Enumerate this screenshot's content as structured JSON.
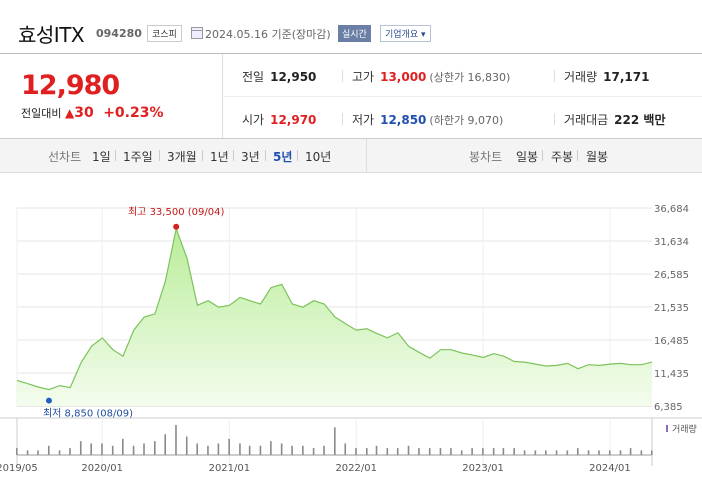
{
  "header": {
    "stock_name": "효성ITX",
    "stock_code": "094280",
    "market": "코스피",
    "date": "2024.05.16 기준(장마감)",
    "realtime_label": "실시간",
    "company_label": "기업개요"
  },
  "quote": {
    "price": "12,980",
    "change_label": "전일대비",
    "change_value": "30",
    "change_pct": "+0.23%",
    "prev_close_label": "전일",
    "prev_close": "12,950",
    "high_label": "고가",
    "high": "13,000",
    "upper_limit": "(상한가 16,830)",
    "volume_label": "거래량",
    "volume": "17,171",
    "open_label": "시가",
    "open": "12,970",
    "low_label": "저가",
    "low": "12,850",
    "lower_limit": "(하한가 9,070)",
    "amount_label": "거래대금",
    "amount": "222 백만"
  },
  "tabs": {
    "line_label": "선차트",
    "periods": [
      "1일",
      "1주일",
      "3개월",
      "1년",
      "3년",
      "5년",
      "10년"
    ],
    "active_period": "5년",
    "candle_label": "봉차트",
    "candles": [
      "일봉",
      "주봉",
      "월봉"
    ]
  },
  "chart_data": {
    "type": "area",
    "y_ticks": [
      "36,684",
      "31,634",
      "26,585",
      "21,535",
      "16,485",
      "11,435",
      "6,385"
    ],
    "ylim": [
      6385,
      36684
    ],
    "x_ticks": [
      "2019/05",
      "2020/01",
      "2021/01",
      "2022/01",
      "2023/01",
      "2024/01"
    ],
    "max_annotation": "최고 33,500 (09/04)",
    "min_annotation": "최저 8,850 (08/09)",
    "volume_label": "거래량",
    "series": [
      {
        "x": [
          "2019-05",
          "2019-06",
          "2019-07",
          "2019-08",
          "2019-09",
          "2019-10",
          "2019-11",
          "2019-12",
          "2020-01",
          "2020-02",
          "2020-03",
          "2020-04",
          "2020-05",
          "2020-06",
          "2020-07",
          "2020-08",
          "2020-09",
          "2020-10",
          "2020-11",
          "2020-12",
          "2021-01",
          "2021-02",
          "2021-03",
          "2021-04",
          "2021-05",
          "2021-06",
          "2021-07",
          "2021-08",
          "2021-09",
          "2021-10",
          "2021-11",
          "2021-12",
          "2022-01",
          "2022-02",
          "2022-03",
          "2022-04",
          "2022-05",
          "2022-06",
          "2022-07",
          "2022-08",
          "2022-09",
          "2022-10",
          "2022-11",
          "2022-12",
          "2023-01",
          "2023-02",
          "2023-03",
          "2023-04",
          "2023-05",
          "2023-06",
          "2023-07",
          "2023-08",
          "2023-09",
          "2023-10",
          "2023-11",
          "2023-12",
          "2024-01",
          "2024-02",
          "2024-03",
          "2024-04",
          "2024-05"
        ],
        "values": [
          10300,
          9800,
          9300,
          8900,
          9500,
          9200,
          13000,
          15500,
          16800,
          15000,
          14000,
          18000,
          20000,
          20500,
          25500,
          33500,
          29000,
          21800,
          22500,
          21500,
          21800,
          23000,
          22500,
          22000,
          24500,
          25000,
          22000,
          21500,
          22500,
          22000,
          20000,
          19000,
          18000,
          18200,
          17500,
          16800,
          17600,
          15500,
          14600,
          13700,
          15000,
          15000,
          14500,
          14200,
          13800,
          14400,
          14000,
          13200,
          13100,
          12800,
          12500,
          12600,
          12900,
          12100,
          12700,
          12600,
          12800,
          12900,
          12700,
          12700,
          13100
        ]
      }
    ],
    "volume": [
      3,
      2,
      2,
      4,
      2,
      3,
      6,
      5,
      5,
      4,
      7,
      4,
      5,
      6,
      9,
      13,
      8,
      5,
      4,
      5,
      7,
      5,
      4,
      4,
      6,
      5,
      4,
      4,
      3,
      4,
      12,
      5,
      3,
      3,
      4,
      3,
      3,
      4,
      3,
      3,
      3,
      3,
      2,
      3,
      3,
      3,
      3,
      3,
      2,
      2,
      2,
      2,
      2,
      3,
      2,
      2,
      2,
      2,
      3,
      2,
      2
    ]
  }
}
